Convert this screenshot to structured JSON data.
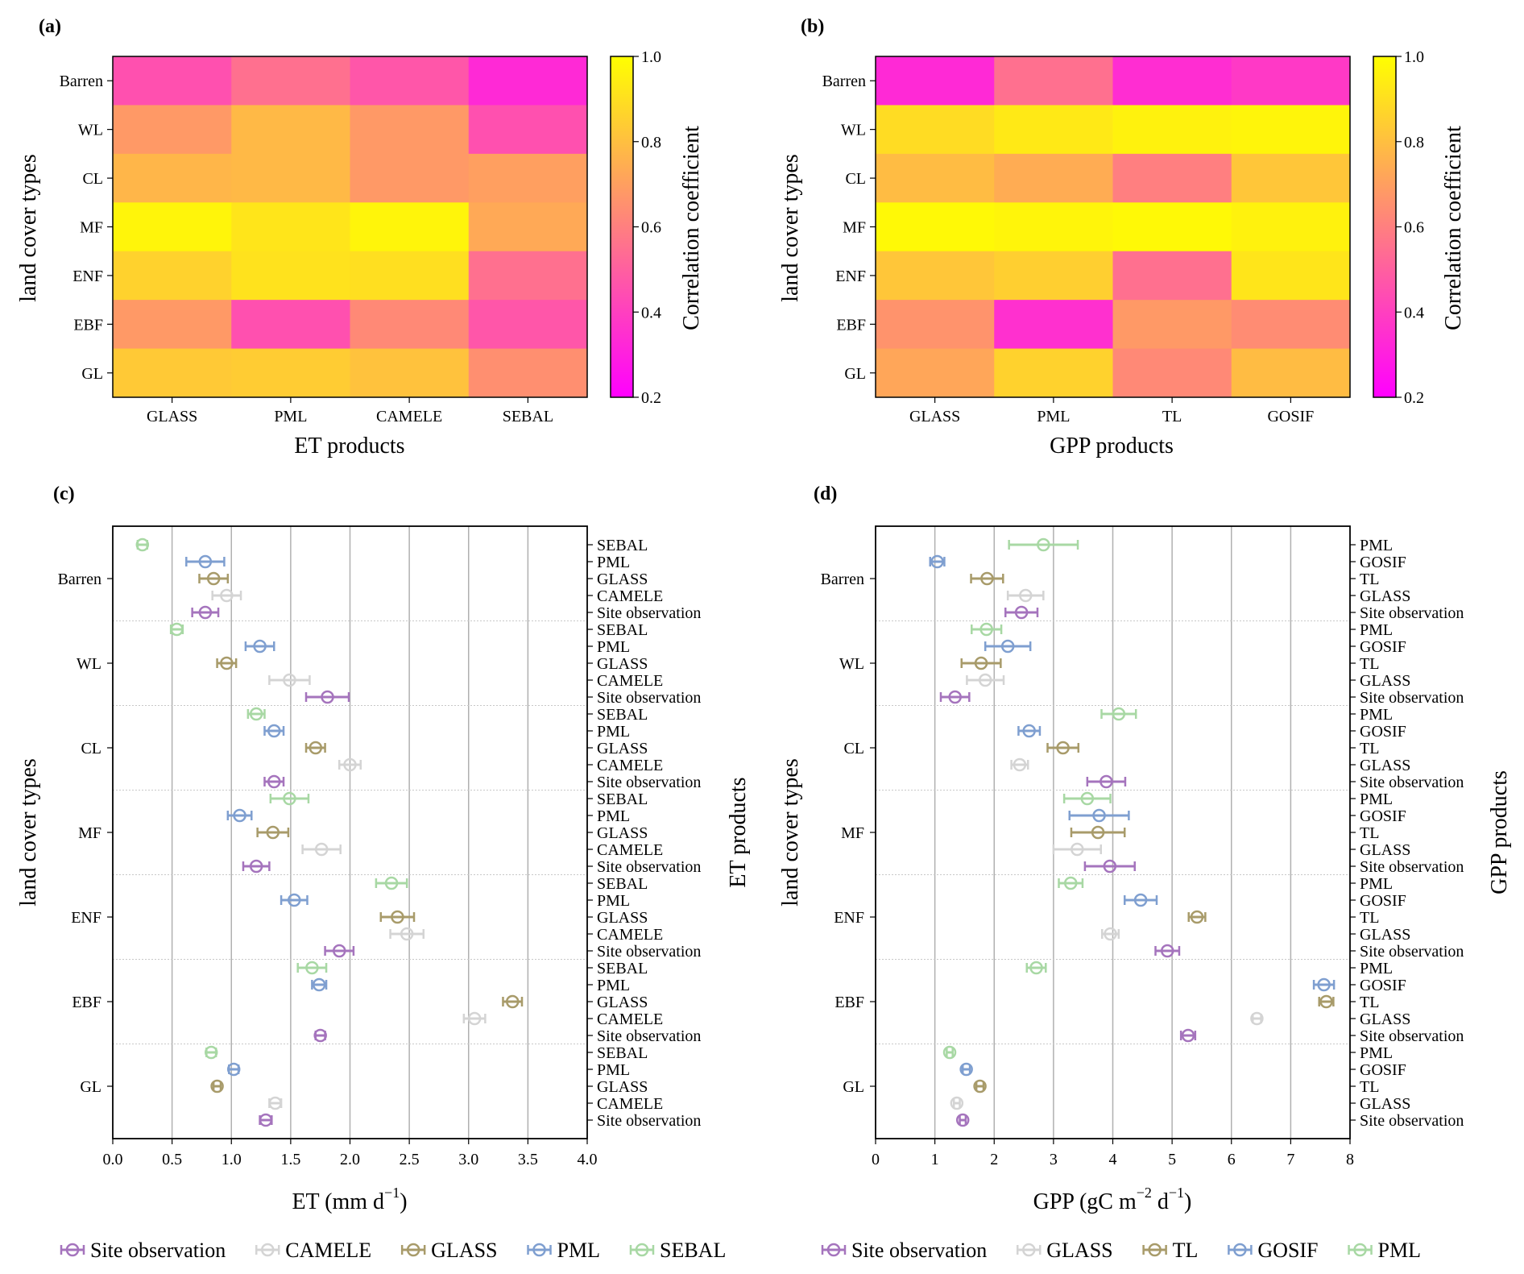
{
  "figure": {
    "colors": {
      "Site observation": "#a574bd",
      "CAMELE": "#d4d4d4",
      "GLASS_et": "#a89b6a",
      "PML_et": "#7f9fd0",
      "SEBAL": "#a8d8a4",
      "GLASS_gpp": "#d4d4d4",
      "TL": "#a89b6a",
      "GOSIF": "#7f9fd0",
      "PML_gpp": "#a8d8a4"
    }
  },
  "chart_data": [
    {
      "id": "a",
      "panel_label": "(a)",
      "type": "heatmap",
      "colormap": "spring",
      "rows": [
        "Barren",
        "WL",
        "CL",
        "MF",
        "ENF",
        "EBF",
        "GL"
      ],
      "columns": [
        "GLASS",
        "PML",
        "CAMELE",
        "SEBAL"
      ],
      "values": [
        [
          0.45,
          0.55,
          0.47,
          0.33
        ],
        [
          0.68,
          0.78,
          0.68,
          0.45
        ],
        [
          0.77,
          0.78,
          0.68,
          0.7
        ],
        [
          0.97,
          0.92,
          0.97,
          0.73
        ],
        [
          0.86,
          0.91,
          0.9,
          0.55
        ],
        [
          0.68,
          0.45,
          0.63,
          0.47
        ],
        [
          0.83,
          0.84,
          0.81,
          0.65
        ]
      ],
      "xlabel": "ET products",
      "ylabel": "land cover types",
      "colorbar": {
        "label": "Correlation coefficient",
        "range": [
          0.2,
          1.0
        ],
        "ticks": [
          "0.2",
          "0.4",
          "0.6",
          "0.8",
          "1.0"
        ]
      }
    },
    {
      "id": "b",
      "panel_label": "(b)",
      "type": "heatmap",
      "colormap": "spring",
      "rows": [
        "Barren",
        "WL",
        "CL",
        "MF",
        "ENF",
        "EBF",
        "GL"
      ],
      "columns": [
        "GLASS",
        "PML",
        "TL",
        "GOSIF"
      ],
      "values": [
        [
          0.33,
          0.55,
          0.34,
          0.38
        ],
        [
          0.89,
          0.93,
          0.96,
          0.97
        ],
        [
          0.79,
          0.74,
          0.6,
          0.82
        ],
        [
          0.98,
          0.97,
          0.98,
          0.96
        ],
        [
          0.82,
          0.85,
          0.55,
          0.92
        ],
        [
          0.66,
          0.35,
          0.68,
          0.64
        ],
        [
          0.72,
          0.86,
          0.63,
          0.79
        ]
      ],
      "xlabel": "GPP products",
      "ylabel": "land cover types",
      "colorbar": {
        "label": "Correlation coefficient",
        "range": [
          0.2,
          1.0
        ],
        "ticks": [
          "0.2",
          "0.4",
          "0.6",
          "0.8",
          "1.0"
        ]
      }
    },
    {
      "id": "c",
      "panel_label": "(c)",
      "type": "scatter",
      "subtype": "errorbar",
      "groups": [
        "Barren",
        "WL",
        "CL",
        "MF",
        "ENF",
        "EBF",
        "GL"
      ],
      "products_top_to_bottom": [
        "SEBAL",
        "PML",
        "GLASS",
        "CAMELE",
        "Site observation"
      ],
      "color_keys": [
        "SEBAL",
        "PML_et",
        "GLASS_et",
        "CAMELE",
        "Site observation"
      ],
      "xlabel": "ET (mm d",
      "xlabel_sup": "−1",
      "xlabel_end": ")",
      "ylabel_left": "land cover types",
      "ylabel_right": "ET products",
      "xlim": [
        0.0,
        4.0
      ],
      "xticks": [
        0.0,
        0.5,
        1.0,
        1.5,
        2.0,
        2.5,
        3.0,
        3.5,
        4.0
      ],
      "xtick_labels": [
        "0.0",
        "0.5",
        "1.0",
        "1.5",
        "2.0",
        "2.5",
        "3.0",
        "3.5",
        "4.0"
      ],
      "grid": "vertical",
      "data": {
        "Barren": [
          [
            0.25,
            0.04
          ],
          [
            0.78,
            0.16
          ],
          [
            0.85,
            0.12
          ],
          [
            0.96,
            0.12
          ],
          [
            0.78,
            0.11
          ]
        ],
        "WL": [
          [
            0.54,
            0.05
          ],
          [
            1.24,
            0.12
          ],
          [
            0.96,
            0.08
          ],
          [
            1.49,
            0.17
          ],
          [
            1.81,
            0.18
          ]
        ],
        "CL": [
          [
            1.21,
            0.07
          ],
          [
            1.36,
            0.08
          ],
          [
            1.71,
            0.08
          ],
          [
            2.0,
            0.09
          ],
          [
            1.36,
            0.08
          ]
        ],
        "MF": [
          [
            1.49,
            0.16
          ],
          [
            1.07,
            0.1
          ],
          [
            1.35,
            0.13
          ],
          [
            1.76,
            0.16
          ],
          [
            1.21,
            0.11
          ]
        ],
        "ENF": [
          [
            2.35,
            0.13
          ],
          [
            1.53,
            0.11
          ],
          [
            2.4,
            0.14
          ],
          [
            2.48,
            0.14
          ],
          [
            1.91,
            0.12
          ]
        ],
        "EBF": [
          [
            1.68,
            0.12
          ],
          [
            1.74,
            0.06
          ],
          [
            3.37,
            0.08
          ],
          [
            3.05,
            0.09
          ],
          [
            1.75,
            0.04
          ]
        ],
        "GL": [
          [
            0.83,
            0.04
          ],
          [
            1.02,
            0.04
          ],
          [
            0.88,
            0.03
          ],
          [
            1.37,
            0.05
          ],
          [
            1.29,
            0.05
          ]
        ]
      },
      "legend": {
        "placement": "bottom",
        "entries": [
          "Site observation",
          "CAMELE",
          "GLASS",
          "PML",
          "SEBAL"
        ],
        "color_keys": [
          "Site observation",
          "CAMELE",
          "GLASS_et",
          "PML_et",
          "SEBAL"
        ]
      }
    },
    {
      "id": "d",
      "panel_label": "(d)",
      "type": "scatter",
      "subtype": "errorbar",
      "groups": [
        "Barren",
        "WL",
        "CL",
        "MF",
        "ENF",
        "EBF",
        "GL"
      ],
      "products_top_to_bottom": [
        "PML",
        "GOSIF",
        "TL",
        "GLASS",
        "Site observation"
      ],
      "color_keys": [
        "PML_gpp",
        "GOSIF",
        "TL",
        "GLASS_gpp",
        "Site observation"
      ],
      "xlabel": "GPP (gC m",
      "xlabel_sup": "−2",
      "xlabel_mid": " d",
      "xlabel_sup2": "−1",
      "xlabel_end": ")",
      "ylabel_left": "land cover types",
      "ylabel_right": "GPP products",
      "xlim": [
        0,
        8
      ],
      "xticks": [
        0,
        1,
        2,
        3,
        4,
        5,
        6,
        7,
        8
      ],
      "xtick_labels": [
        "0",
        "1",
        "2",
        "3",
        "4",
        "5",
        "6",
        "7",
        "8"
      ],
      "grid": "vertical",
      "data": {
        "Barren": [
          [
            2.83,
            0.58
          ],
          [
            1.04,
            0.12
          ],
          [
            1.88,
            0.27
          ],
          [
            2.53,
            0.3
          ],
          [
            2.46,
            0.27
          ]
        ],
        "WL": [
          [
            1.87,
            0.25
          ],
          [
            2.23,
            0.38
          ],
          [
            1.78,
            0.33
          ],
          [
            1.85,
            0.31
          ],
          [
            1.34,
            0.24
          ]
        ],
        "CL": [
          [
            4.1,
            0.29
          ],
          [
            2.59,
            0.18
          ],
          [
            3.16,
            0.26
          ],
          [
            2.43,
            0.14
          ],
          [
            3.89,
            0.32
          ]
        ],
        "MF": [
          [
            3.57,
            0.39
          ],
          [
            3.77,
            0.5
          ],
          [
            3.75,
            0.45
          ],
          [
            3.4,
            0.4
          ],
          [
            3.95,
            0.42
          ]
        ],
        "ENF": [
          [
            3.29,
            0.2
          ],
          [
            4.47,
            0.27
          ],
          [
            5.42,
            0.14
          ],
          [
            3.96,
            0.14
          ],
          [
            4.92,
            0.2
          ]
        ],
        "EBF": [
          [
            2.71,
            0.16
          ],
          [
            7.56,
            0.17
          ],
          [
            7.6,
            0.12
          ],
          [
            6.43,
            0.07
          ],
          [
            5.27,
            0.12
          ]
        ],
        "GL": [
          [
            1.25,
            0.05
          ],
          [
            1.53,
            0.06
          ],
          [
            1.76,
            0.06
          ],
          [
            1.37,
            0.05
          ],
          [
            1.47,
            0.05
          ]
        ]
      },
      "legend": {
        "placement": "bottom",
        "entries": [
          "Site observation",
          "GLASS",
          "TL",
          "GOSIF",
          "PML"
        ],
        "color_keys": [
          "Site observation",
          "GLASS_gpp",
          "TL",
          "GOSIF",
          "PML_gpp"
        ]
      }
    }
  ]
}
